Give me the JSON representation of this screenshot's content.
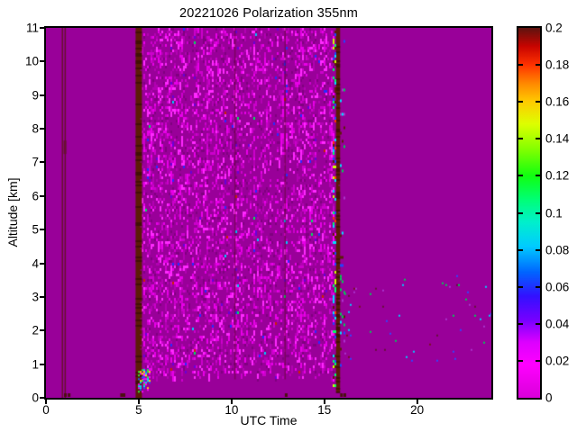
{
  "window": {
    "background": "#ffffff"
  },
  "chart_data": {
    "type": "heatmap",
    "title": "20221026 Polarization 355nm",
    "xlabel": "UTC Time",
    "ylabel": "Altitude [km]",
    "xlim": [
      0,
      24
    ],
    "ylim": [
      0,
      11
    ],
    "xticks": [
      {
        "v": 0,
        "label": "0"
      },
      {
        "v": 5,
        "label": "5"
      },
      {
        "v": 10,
        "label": "10"
      },
      {
        "v": 15,
        "label": "15"
      },
      {
        "v": 20,
        "label": "20"
      }
    ],
    "yticks": [
      {
        "v": 0,
        "label": "0"
      },
      {
        "v": 1,
        "label": "1"
      },
      {
        "v": 2,
        "label": "2"
      },
      {
        "v": 3,
        "label": "3"
      },
      {
        "v": 4,
        "label": "4"
      },
      {
        "v": 5,
        "label": "5"
      },
      {
        "v": 6,
        "label": "6"
      },
      {
        "v": 7,
        "label": "7"
      },
      {
        "v": 8,
        "label": "8"
      },
      {
        "v": 9,
        "label": "9"
      },
      {
        "v": 10,
        "label": "10"
      },
      {
        "v": 11,
        "label": "11"
      }
    ],
    "grid": false,
    "legend": "none",
    "colorbar": {
      "min": 0,
      "max": 0.2,
      "position": "right",
      "ticks": [
        {
          "v": 0.2,
          "label": "0.2"
        },
        {
          "v": 0.18,
          "label": "0.18"
        },
        {
          "v": 0.16,
          "label": "0.16"
        },
        {
          "v": 0.14,
          "label": "0.14"
        },
        {
          "v": 0.12,
          "label": "0.12"
        },
        {
          "v": 0.1,
          "label": "0.1"
        },
        {
          "v": 0.08,
          "label": "0.08"
        },
        {
          "v": 0.06,
          "label": "0.06"
        },
        {
          "v": 0.04,
          "label": "0.04"
        },
        {
          "v": 0.02,
          "label": "0.02"
        },
        {
          "v": 0,
          "label": "0"
        }
      ],
      "colormap_stops": [
        [
          0.0,
          "#da00da"
        ],
        [
          0.018,
          "#ff00ff"
        ],
        [
          0.03,
          "#dd00ff"
        ],
        [
          0.042,
          "#7700ff"
        ],
        [
          0.055,
          "#3311ff"
        ],
        [
          0.068,
          "#0066ff"
        ],
        [
          0.082,
          "#00ccff"
        ],
        [
          0.095,
          "#00f0cc"
        ],
        [
          0.107,
          "#00ff77"
        ],
        [
          0.12,
          "#11ff11"
        ],
        [
          0.135,
          "#88ff00"
        ],
        [
          0.148,
          "#ddff00"
        ],
        [
          0.16,
          "#ffcc00"
        ],
        [
          0.17,
          "#ff8800"
        ],
        [
          0.18,
          "#ff3300"
        ],
        [
          0.19,
          "#c80400"
        ],
        [
          0.2,
          "#5e1410"
        ]
      ]
    },
    "background_value": 0,
    "background_color": "#990099",
    "seed": 20221026,
    "features": {
      "thin_lines": [
        {
          "x": 0.85,
          "color": "#681030",
          "width": 1.5
        },
        {
          "x": 1.0,
          "color": "#681030",
          "width": 1.5,
          "thick_segment": {
            "alt0": 7.25,
            "alt1": 7.65,
            "width": 3
          }
        }
      ],
      "faint_lines_in_noise": [
        {
          "x": 10.15
        },
        {
          "x": 12.85
        }
      ],
      "faint_line_color": "rgba(80,10,10,0.4)",
      "stripes": [
        {
          "name": "saturated-stripe-0500utc",
          "x0": 4.83,
          "x1": 5.17,
          "alt0": 0,
          "alt1": 11,
          "color": "#5c1c08"
        },
        {
          "name": "saturated-stripe-1540utc",
          "x0": 15.63,
          "x1": 15.85,
          "alt0": 0.15,
          "alt1": 11,
          "color": "#5c1c08"
        }
      ],
      "noise_region": {
        "x0": 5.17,
        "x1": 15.5,
        "alt0": 0.55,
        "alt1": 11,
        "base_density": 0.3,
        "bright_colors": [
          "#b300b3",
          "#cc00cc",
          "#e800e8",
          "#ff2aff"
        ],
        "dark_color": "#800080",
        "speck_colors": [
          "#6a00d8",
          "#2a2aff",
          "#00c8ff",
          "#00e060",
          "#cc2200"
        ]
      },
      "edge_speckle_columns": [
        {
          "x0": 15.45,
          "x1": 15.63,
          "alt0": 0.3,
          "alt1": 11,
          "density": 0.45,
          "colors": [
            "#00e0ff",
            "#00ff66",
            "#ccff00",
            "#ff3300",
            "#2244ff",
            "#ff00ff",
            "#5c1c08"
          ]
        },
        {
          "x0": 15.85,
          "x1": 16.15,
          "alt0": 0.8,
          "alt1": 10.8,
          "density": 0.1,
          "colors": [
            "#00e0ff",
            "#2244ff",
            "#5c1c08",
            "#00cc55",
            "#aa33cc"
          ]
        }
      ],
      "bottom_cluster": {
        "x0": 4.95,
        "x1": 5.6,
        "alt0": 0.18,
        "alt1": 0.85,
        "density": 0.5,
        "colors": [
          "#00e0ff",
          "#33ee33",
          "#ffee00",
          "#2255ff",
          "#ff00ff"
        ]
      },
      "sparse_speckles": {
        "x0": 16.1,
        "x1": 24,
        "alt0": 1.1,
        "alt1": 3.7,
        "density": 0.012,
        "colors": [
          "#00ccff",
          "#3344ff",
          "#7a1020",
          "#00cc55",
          "#aa33cc",
          "#66103a"
        ]
      },
      "bottom_specks": {
        "xs": [
          1.02,
          1.22,
          4.05,
          4.18,
          12.92,
          15.9,
          16.08
        ],
        "color": "#4a1010"
      }
    }
  }
}
